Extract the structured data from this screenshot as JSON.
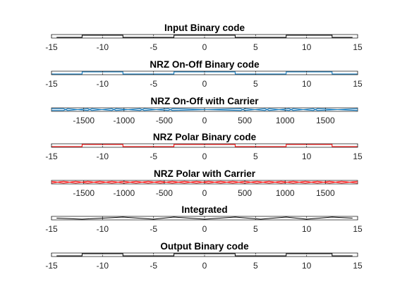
{
  "figure": {
    "background": "#ffffff"
  },
  "chart_data": [
    {
      "type": "line",
      "title": "Input Binary code",
      "xlim": [
        -15,
        15
      ],
      "xticks": [
        -15,
        -10,
        -5,
        0,
        5,
        10,
        15
      ],
      "ylim": [
        0,
        1
      ],
      "series": [
        {
          "color": "#000000",
          "x": [
            -14.5,
            -12,
            -12,
            -8,
            -8,
            -3,
            -3,
            3,
            3,
            8,
            8,
            12.5,
            12.5,
            14.5
          ],
          "y": [
            0.2,
            0.2,
            0.8,
            0.8,
            0.2,
            0.2,
            0.8,
            0.8,
            0.2,
            0.2,
            0.8,
            0.8,
            0.2,
            0.2
          ]
        }
      ]
    },
    {
      "type": "line",
      "title": "NRZ On-Off Binary code",
      "xlim": [
        -15,
        15
      ],
      "xticks": [
        -15,
        -10,
        -5,
        0,
        5,
        10,
        15
      ],
      "ylim": [
        0,
        1
      ],
      "series": [
        {
          "color": "#0072bd",
          "x": [
            -15,
            -12,
            -12,
            -8,
            -8,
            -3,
            -3,
            3,
            3,
            8,
            8,
            12.5,
            12.5,
            15
          ],
          "y": [
            0.2,
            0.2,
            0.8,
            0.8,
            0.2,
            0.2,
            0.8,
            0.8,
            0.2,
            0.2,
            0.8,
            0.8,
            0.2,
            0.2
          ]
        }
      ]
    },
    {
      "type": "line",
      "title": "NRZ On-Off with Carrier",
      "xlim": [
        -1900,
        1900
      ],
      "xticks": [
        -1500,
        -1000,
        -500,
        0,
        500,
        1000,
        1500
      ],
      "ylim": [
        -1,
        1
      ],
      "series": [
        {
          "color": "#0072bd",
          "carrier": true,
          "x": [
            -1900,
            -1750,
            -1700,
            -1450,
            -1400,
            -1150,
            -1100,
            -800,
            -750,
            -450,
            -400,
            450,
            500,
            750,
            800,
            1050,
            1100,
            1350,
            1400,
            1900
          ],
          "y": [
            0.5,
            0.5,
            -0.5,
            0.5,
            -0.5,
            0.5,
            -0.5,
            0.5,
            -0.5,
            0.5,
            -0.5,
            0.5,
            -0.5,
            0.5,
            -0.5,
            0.5,
            -0.5,
            0.5,
            -0.5,
            0.5
          ]
        }
      ]
    },
    {
      "type": "line",
      "title": "NRZ Polar Binary code",
      "xlim": [
        -15,
        15
      ],
      "xticks": [
        -15,
        -10,
        -5,
        0,
        5,
        10,
        15
      ],
      "ylim": [
        0,
        1
      ],
      "series": [
        {
          "color": "#ff0000",
          "x": [
            -15,
            -12,
            -12,
            -8,
            -8,
            -3,
            -3,
            3,
            3,
            8,
            8,
            12.5,
            12.5,
            15
          ],
          "y": [
            0.2,
            0.2,
            0.8,
            0.8,
            0.2,
            0.2,
            0.8,
            0.8,
            0.2,
            0.2,
            0.8,
            0.8,
            0.2,
            0.2
          ]
        }
      ]
    },
    {
      "type": "line",
      "title": "NRZ Polar with Carrier",
      "xlim": [
        -1900,
        1900
      ],
      "xticks": [
        -1500,
        -1000,
        -500,
        0,
        500,
        1000,
        1500
      ],
      "ylim": [
        -1,
        1
      ],
      "series": [
        {
          "color": "#ff0000",
          "carrier": true,
          "x": [
            -1900,
            -1750,
            -1600,
            -1450,
            -1300,
            -1150,
            -1000,
            -850,
            -700,
            -550,
            -400,
            -250,
            -100,
            50,
            200,
            350,
            500,
            650,
            800,
            950,
            1100,
            1250,
            1400,
            1550,
            1700,
            1900
          ],
          "y": [
            0.5,
            -0.5,
            0.5,
            -0.5,
            0.5,
            -0.5,
            0.5,
            -0.5,
            0.5,
            -0.5,
            0.5,
            -0.5,
            0.5,
            -0.5,
            0.5,
            -0.5,
            0.5,
            -0.5,
            0.5,
            -0.5,
            0.5,
            -0.5,
            0.5,
            -0.5,
            0.5,
            -0.5
          ]
        }
      ]
    },
    {
      "type": "line",
      "title": "Integrated",
      "xlim": [
        -15,
        15
      ],
      "xticks": [
        -15,
        -10,
        -5,
        0,
        5,
        10,
        15
      ],
      "ylim": [
        0,
        1
      ],
      "series": [
        {
          "color": "#000000",
          "x": [
            -14.5,
            -12,
            -8,
            -5,
            -3,
            0,
            3,
            5.5,
            8,
            10,
            12.5,
            14.5
          ],
          "y": [
            0.5,
            0.2,
            0.8,
            0.2,
            0.8,
            0.2,
            0.8,
            0.2,
            0.8,
            0.2,
            0.8,
            0.5
          ]
        }
      ]
    },
    {
      "type": "line",
      "title": "Output Binary code",
      "xlim": [
        -15,
        15
      ],
      "xticks": [
        -15,
        -10,
        -5,
        0,
        5,
        10,
        15
      ],
      "ylim": [
        0,
        1
      ],
      "series": [
        {
          "color": "#000000",
          "x": [
            -14.5,
            -12,
            -12,
            -8,
            -8,
            -3,
            -3,
            3,
            3,
            8,
            8,
            12.5,
            12.5,
            14.5
          ],
          "y": [
            0.2,
            0.2,
            0.8,
            0.8,
            0.2,
            0.2,
            0.8,
            0.8,
            0.2,
            0.2,
            0.8,
            0.8,
            0.2,
            0.2
          ]
        }
      ]
    }
  ]
}
